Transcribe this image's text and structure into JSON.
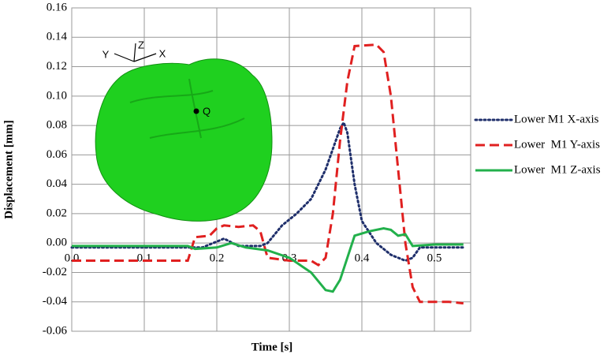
{
  "chart_data": {
    "type": "line",
    "xlabel": "Time [s]",
    "ylabel": "Displacement [mm]",
    "xlim": [
      0,
      0.55
    ],
    "ylim": [
      -0.06,
      0.16
    ],
    "xticks": [
      {
        "value": 0,
        "label": "0.0"
      },
      {
        "value": 0.1,
        "label": "0.1"
      },
      {
        "value": 0.2,
        "label": "0.2"
      },
      {
        "value": 0.3,
        "label": "0.3"
      },
      {
        "value": 0.4,
        "label": "0.4"
      },
      {
        "value": 0.5,
        "label": "0.5"
      }
    ],
    "yticks": [
      {
        "value": -0.06,
        "label": "-0.06"
      },
      {
        "value": -0.04,
        "label": "-0.04"
      },
      {
        "value": -0.02,
        "label": "-0.02"
      },
      {
        "value": 0,
        "label": "0.00"
      },
      {
        "value": 0.02,
        "label": "0.02"
      },
      {
        "value": 0.04,
        "label": "0.04"
      },
      {
        "value": 0.06,
        "label": "0.06"
      },
      {
        "value": 0.08,
        "label": "0.08"
      },
      {
        "value": 0.1,
        "label": "0.10"
      },
      {
        "value": 0.12,
        "label": "0.12"
      },
      {
        "value": 0.14,
        "label": "0.14"
      },
      {
        "value": 0.16,
        "label": "0.16"
      }
    ],
    "grid": true,
    "legend": "right",
    "inset_labels": [
      "Y",
      "Z",
      "X",
      "Q"
    ],
    "series": [
      {
        "name": "Lower M1 X-axis",
        "color": "#1f2f6b",
        "dash": "dotted",
        "x": [
          0,
          0.1,
          0.18,
          0.21,
          0.23,
          0.26,
          0.27,
          0.29,
          0.31,
          0.33,
          0.35,
          0.37,
          0.375,
          0.38,
          0.39,
          0.4,
          0.42,
          0.44,
          0.46,
          0.47,
          0.48,
          0.54
        ],
        "values": [
          -0.003,
          -0.003,
          -0.003,
          0.003,
          -0.002,
          -0.002,
          0.0,
          0.012,
          0.02,
          0.03,
          0.05,
          0.078,
          0.082,
          0.075,
          0.04,
          0.015,
          0.0,
          -0.008,
          -0.012,
          -0.01,
          -0.003,
          -0.003
        ]
      },
      {
        "name": "Lower  M1 Y-axis",
        "color": "#e02020",
        "dash": "dashed",
        "x": [
          0,
          0.16,
          0.17,
          0.19,
          0.2,
          0.21,
          0.23,
          0.25,
          0.26,
          0.27,
          0.3,
          0.33,
          0.34,
          0.35,
          0.36,
          0.37,
          0.38,
          0.39,
          0.42,
          0.43,
          0.44,
          0.45,
          0.46,
          0.47,
          0.48,
          0.52,
          0.54
        ],
        "values": [
          -0.012,
          -0.012,
          0.004,
          0.005,
          0.01,
          0.012,
          0.011,
          0.012,
          0.008,
          -0.01,
          -0.012,
          -0.012,
          -0.015,
          -0.01,
          0.02,
          0.07,
          0.11,
          0.134,
          0.135,
          0.13,
          0.1,
          0.05,
          0.0,
          -0.03,
          -0.04,
          -0.04,
          -0.041
        ]
      },
      {
        "name": "Lower  M1 Z-axis",
        "color": "#22b04b",
        "dash": "solid",
        "x": [
          0,
          0.16,
          0.17,
          0.2,
          0.22,
          0.24,
          0.27,
          0.3,
          0.33,
          0.35,
          0.36,
          0.37,
          0.38,
          0.39,
          0.41,
          0.43,
          0.44,
          0.45,
          0.46,
          0.47,
          0.5,
          0.54
        ],
        "values": [
          -0.002,
          -0.002,
          -0.004,
          -0.003,
          0.0,
          -0.003,
          -0.005,
          -0.01,
          -0.02,
          -0.032,
          -0.033,
          -0.025,
          -0.01,
          0.005,
          0.008,
          0.01,
          0.009,
          0.005,
          0.006,
          -0.002,
          -0.001,
          -0.001
        ]
      }
    ]
  }
}
